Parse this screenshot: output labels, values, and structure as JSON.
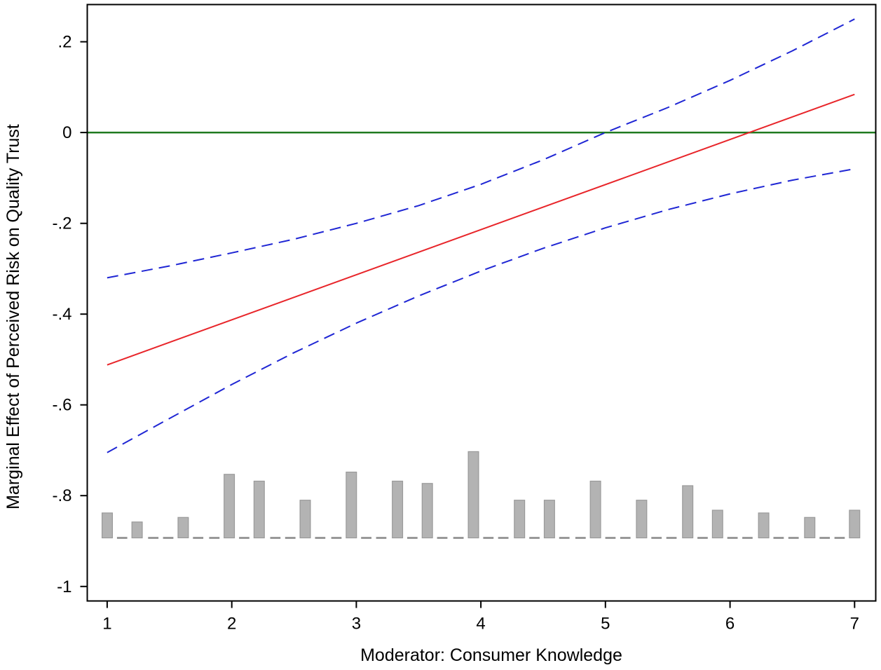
{
  "chart_data": {
    "type": "line",
    "title": "",
    "xlabel": "Moderator: Consumer Knowledge",
    "ylabel": "Marginal Effect of Perceived Risk on Quality Trust",
    "xlim": [
      0.84,
      7.17
    ],
    "ylim": [
      -1.032,
      0.282
    ],
    "x_ticks": [
      {
        "value": 1,
        "label": "1"
      },
      {
        "value": 2,
        "label": "2"
      },
      {
        "value": 3,
        "label": "3"
      },
      {
        "value": 4,
        "label": "4"
      },
      {
        "value": 5,
        "label": "5"
      },
      {
        "value": 6,
        "label": "6"
      },
      {
        "value": 7,
        "label": "7"
      }
    ],
    "y_ticks": [
      {
        "value": 0.2,
        "label": ".2"
      },
      {
        "value": 0,
        "label": "0"
      },
      {
        "value": -0.2,
        "label": "-.2"
      },
      {
        "value": -0.4,
        "label": "-.4"
      },
      {
        "value": -0.6,
        "label": "-.6"
      },
      {
        "value": -0.8,
        "label": "-.8"
      },
      {
        "value": -1,
        "label": "-1"
      }
    ],
    "grid": false,
    "reference_line": {
      "y": 0,
      "color": "#1f7a1f"
    },
    "series": [
      {
        "style": "solid",
        "color": "#e8252a",
        "x": [
          1,
          7
        ],
        "y": [
          -0.512,
          0.084
        ]
      },
      {
        "style": "dashed",
        "color": "#1f26d4",
        "x": [
          1,
          1.5,
          2,
          2.5,
          3,
          3.5,
          4,
          4.5,
          5,
          5.5,
          6,
          6.5,
          7
        ],
        "y": [
          -0.32,
          -0.294,
          -0.265,
          -0.235,
          -0.2,
          -0.161,
          -0.114,
          -0.06,
          0.0,
          0.055,
          0.115,
          0.18,
          0.25
        ]
      },
      {
        "style": "dashed",
        "color": "#1f26d4",
        "x": [
          1,
          1.5,
          2,
          2.5,
          3,
          3.5,
          4,
          4.5,
          5,
          5.5,
          6,
          6.5,
          7
        ],
        "y": [
          -0.705,
          -0.63,
          -0.555,
          -0.485,
          -0.42,
          -0.36,
          -0.305,
          -0.255,
          -0.21,
          -0.17,
          -0.135,
          -0.105,
          -0.08
        ]
      }
    ],
    "histogram": {
      "color": "#b3b3b3",
      "edge_color": "#999999",
      "baseline": -0.893,
      "bin_width": 0.083,
      "bars": [
        {
          "x": 1.0,
          "top": -0.838
        },
        {
          "x": 1.24,
          "top": -0.858
        },
        {
          "x": 1.61,
          "top": -0.848
        },
        {
          "x": 1.98,
          "top": -0.753
        },
        {
          "x": 2.22,
          "top": -0.768
        },
        {
          "x": 2.59,
          "top": -0.81
        },
        {
          "x": 2.96,
          "top": -0.748
        },
        {
          "x": 3.33,
          "top": -0.768
        },
        {
          "x": 3.57,
          "top": -0.773
        },
        {
          "x": 3.94,
          "top": -0.703
        },
        {
          "x": 4.31,
          "top": -0.81
        },
        {
          "x": 4.55,
          "top": -0.81
        },
        {
          "x": 4.92,
          "top": -0.768
        },
        {
          "x": 5.29,
          "top": -0.81
        },
        {
          "x": 5.66,
          "top": -0.778
        },
        {
          "x": 5.9,
          "top": -0.832
        },
        {
          "x": 6.27,
          "top": -0.838
        },
        {
          "x": 6.64,
          "top": -0.848
        },
        {
          "x": 7.0,
          "top": -0.832
        }
      ],
      "empty_bins": [
        1.12,
        1.37,
        1.49,
        1.73,
        1.86,
        2.1,
        2.35,
        2.47,
        2.71,
        2.84,
        3.08,
        3.2,
        3.45,
        3.69,
        3.82,
        4.06,
        4.18,
        4.43,
        4.67,
        4.8,
        5.04,
        5.16,
        5.41,
        5.53,
        5.78,
        6.02,
        6.14,
        6.39,
        6.51,
        6.76,
        6.88
      ]
    }
  }
}
